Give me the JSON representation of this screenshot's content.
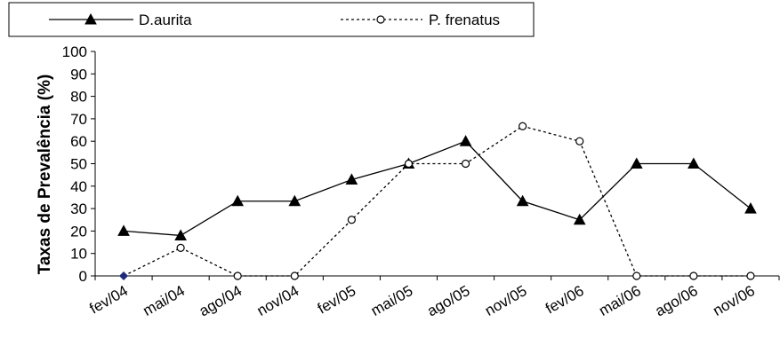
{
  "chart_data": {
    "type": "line",
    "categories": [
      "fev/04",
      "mai/04",
      "ago/04",
      "nov/04",
      "fev/05",
      "mai/05",
      "ago/05",
      "nov/05",
      "fev/06",
      "mai/06",
      "ago/06",
      "nov/06"
    ],
    "series": [
      {
        "name": "D.aurita",
        "values": [
          20,
          18,
          33.3,
          33.3,
          42.9,
          50,
          60,
          33.3,
          25,
          50,
          50,
          30
        ],
        "line_style": "solid",
        "marker": "filled-triangle",
        "color": "#000000"
      },
      {
        "name": "P. frenatus",
        "values": [
          0,
          12.5,
          0,
          0,
          25,
          50,
          50,
          66.7,
          60,
          0,
          0,
          0
        ],
        "line_style": "dotted",
        "marker": "open-circle",
        "color": "#000000",
        "first_marker_color": "#1f2a7a"
      }
    ],
    "ylabel": "Taxas de Prevalência (%)",
    "xlabel": "",
    "ylim": [
      0,
      100
    ],
    "yticks": [
      "0",
      "10",
      "20",
      "30",
      "40",
      "50",
      "60",
      "70",
      "80",
      "90",
      "100"
    ],
    "grid": false,
    "legend_position": "top"
  }
}
